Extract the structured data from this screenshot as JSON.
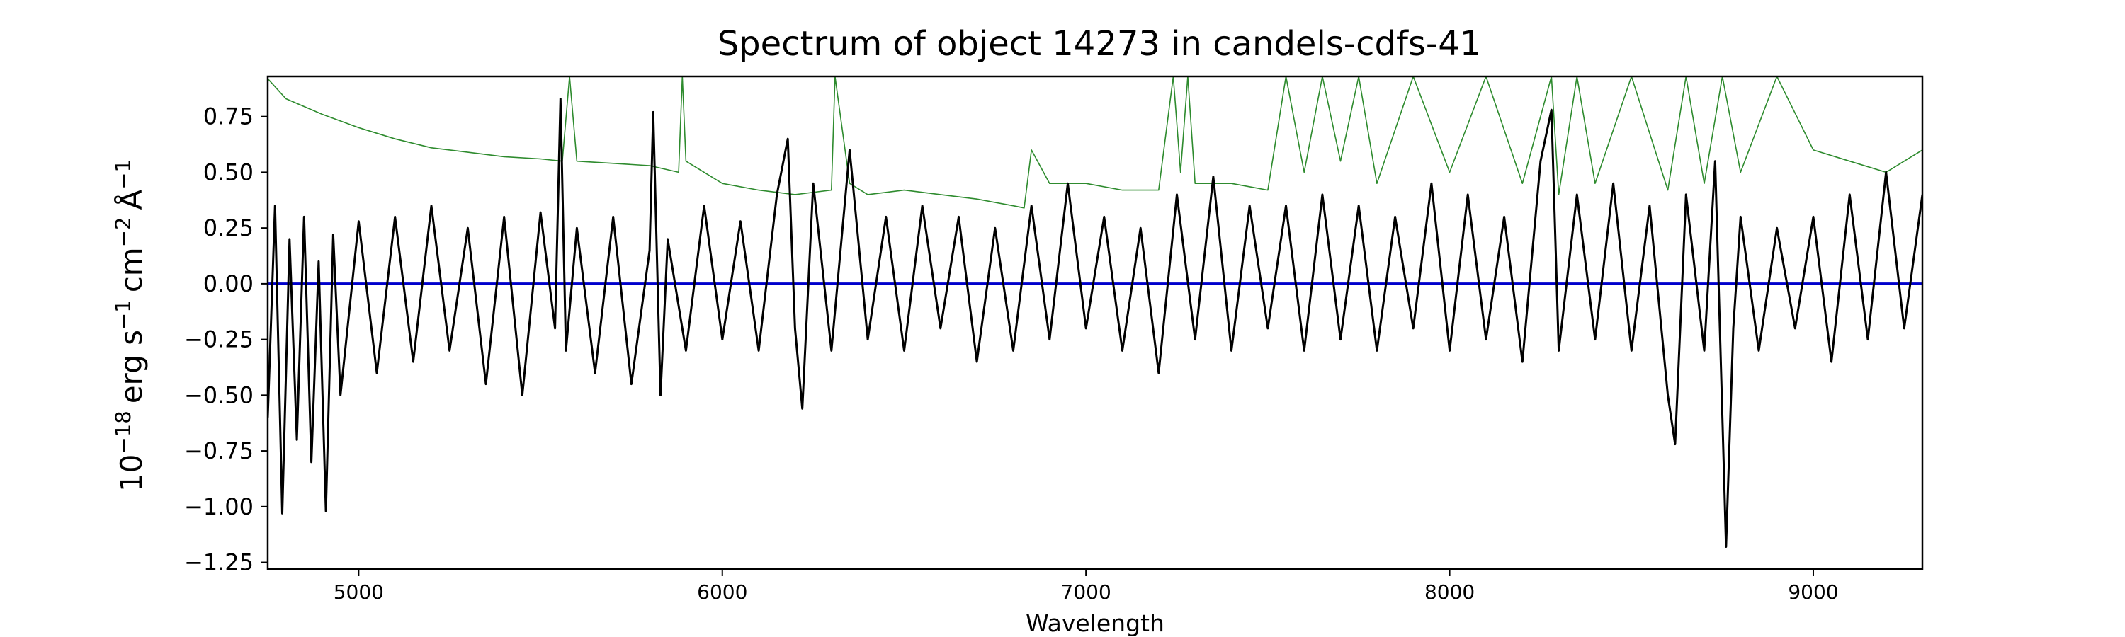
{
  "chart_data": {
    "type": "line",
    "title": "Spectrum of object 14273 in candels-cdfs-41",
    "xlabel": "Wavelength",
    "ylabel": {
      "base": "10",
      "exp": "−18",
      "unit_erg": "erg s",
      "exp_s": "−1",
      "unit_cm": "cm",
      "exp_cm": "−2",
      "unit_A": "Å",
      "exp_A": "−1"
    },
    "xlim": [
      4750,
      9300
    ],
    "ylim": [
      -1.28,
      0.93
    ],
    "xticks": [
      5000,
      6000,
      7000,
      8000,
      9000
    ],
    "xtick_labels": [
      "5000",
      "6000",
      "7000",
      "8000",
      "9000"
    ],
    "yticks": [
      0.75,
      0.5,
      0.25,
      0.0,
      -0.25,
      -0.5,
      -0.75,
      -1.0,
      -1.25
    ],
    "ytick_labels": [
      "0.75",
      "0.50",
      "0.25",
      "0.00",
      "−0.25",
      "−0.50",
      "−0.75",
      "−1.00",
      "−1.25"
    ],
    "colors": {
      "flux": "#000000",
      "error": "#2e8b2e",
      "zero": "#0000cc"
    },
    "zero_line": 0.0,
    "series": [
      {
        "role": "flux",
        "x": [
          4750,
          4770,
          4790,
          4810,
          4830,
          4850,
          4870,
          4890,
          4910,
          4930,
          4950,
          5000,
          5050,
          5100,
          5150,
          5200,
          5250,
          5300,
          5350,
          5400,
          5450,
          5500,
          5540,
          5555,
          5570,
          5600,
          5650,
          5700,
          5750,
          5800,
          5810,
          5830,
          5850,
          5900,
          5950,
          6000,
          6050,
          6100,
          6150,
          6180,
          6200,
          6220,
          6250,
          6300,
          6350,
          6400,
          6450,
          6500,
          6550,
          6600,
          6650,
          6700,
          6750,
          6800,
          6850,
          6900,
          6950,
          7000,
          7050,
          7100,
          7150,
          7200,
          7250,
          7300,
          7350,
          7400,
          7450,
          7500,
          7550,
          7600,
          7650,
          7700,
          7750,
          7800,
          7850,
          7900,
          7950,
          8000,
          8050,
          8100,
          8150,
          8200,
          8250,
          8280,
          8300,
          8350,
          8400,
          8450,
          8500,
          8550,
          8600,
          8620,
          8650,
          8700,
          8730,
          8760,
          8780,
          8800,
          8850,
          8900,
          8950,
          9000,
          9050,
          9100,
          9150,
          9200,
          9250,
          9300
        ],
        "y": [
          -0.6,
          0.35,
          -1.03,
          0.2,
          -0.7,
          0.3,
          -0.8,
          0.1,
          -1.02,
          0.22,
          -0.5,
          0.28,
          -0.4,
          0.3,
          -0.35,
          0.35,
          -0.3,
          0.25,
          -0.45,
          0.3,
          -0.5,
          0.32,
          -0.2,
          0.83,
          -0.3,
          0.25,
          -0.4,
          0.3,
          -0.45,
          0.15,
          0.77,
          -0.5,
          0.2,
          -0.3,
          0.35,
          -0.25,
          0.28,
          -0.3,
          0.4,
          0.65,
          -0.2,
          -0.56,
          0.45,
          -0.3,
          0.6,
          -0.25,
          0.3,
          -0.3,
          0.35,
          -0.2,
          0.3,
          -0.35,
          0.25,
          -0.3,
          0.35,
          -0.25,
          0.45,
          -0.2,
          0.3,
          -0.3,
          0.25,
          -0.4,
          0.4,
          -0.25,
          0.48,
          -0.3,
          0.35,
          -0.2,
          0.35,
          -0.3,
          0.4,
          -0.25,
          0.35,
          -0.3,
          0.3,
          -0.2,
          0.45,
          -0.3,
          0.4,
          -0.25,
          0.3,
          -0.35,
          0.55,
          0.78,
          -0.3,
          0.4,
          -0.25,
          0.45,
          -0.3,
          0.35,
          -0.5,
          -0.72,
          0.4,
          -0.3,
          0.55,
          -1.18,
          -0.2,
          0.3,
          -0.3,
          0.25,
          -0.2,
          0.3,
          -0.35,
          0.4,
          -0.25,
          0.5,
          -0.2,
          0.4
        ]
      },
      {
        "role": "error",
        "x": [
          4750,
          4800,
          4900,
          5000,
          5100,
          5200,
          5300,
          5400,
          5500,
          5560,
          5580,
          5600,
          5700,
          5800,
          5880,
          5890,
          5900,
          6000,
          6100,
          6200,
          6300,
          6310,
          6350,
          6400,
          6500,
          6600,
          6700,
          6800,
          6830,
          6850,
          6900,
          7000,
          7100,
          7200,
          7240,
          7260,
          7280,
          7300,
          7400,
          7500,
          7550,
          7600,
          7650,
          7700,
          7750,
          7800,
          7900,
          8000,
          8100,
          8200,
          8280,
          8300,
          8350,
          8400,
          8500,
          8600,
          8650,
          8700,
          8750,
          8800,
          8900,
          9000,
          9100,
          9200,
          9250,
          9300
        ],
        "y": [
          0.92,
          0.83,
          0.76,
          0.7,
          0.65,
          0.61,
          0.59,
          0.57,
          0.56,
          0.55,
          0.93,
          0.55,
          0.54,
          0.53,
          0.5,
          0.93,
          0.55,
          0.45,
          0.42,
          0.4,
          0.42,
          0.93,
          0.45,
          0.4,
          0.42,
          0.4,
          0.38,
          0.35,
          0.34,
          0.6,
          0.45,
          0.45,
          0.42,
          0.42,
          0.93,
          0.5,
          0.93,
          0.45,
          0.45,
          0.42,
          0.93,
          0.5,
          0.93,
          0.55,
          0.93,
          0.45,
          0.93,
          0.5,
          0.93,
          0.45,
          0.93,
          0.4,
          0.93,
          0.45,
          0.93,
          0.42,
          0.93,
          0.45,
          0.93,
          0.5,
          0.93,
          0.6,
          0.55,
          0.5,
          0.55,
          0.6
        ]
      }
    ]
  }
}
